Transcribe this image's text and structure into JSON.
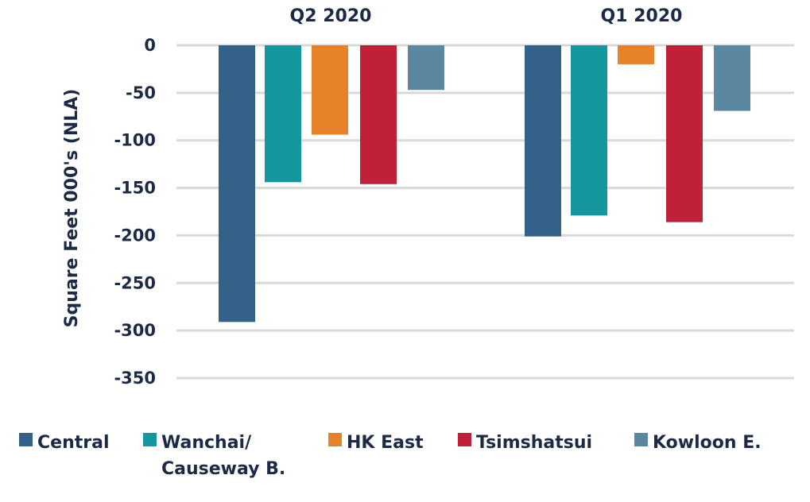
{
  "chart_data": {
    "type": "bar",
    "ylabel": "Square Feet 000's (NLA)",
    "ylim": [
      -350,
      0
    ],
    "yticks": [
      0,
      -50,
      -100,
      -150,
      -200,
      -250,
      -300,
      -350
    ],
    "grid": true,
    "legend_position": "bottom",
    "groups": [
      "Q2 2020",
      "Q1 2020"
    ],
    "series": [
      {
        "name": "Central",
        "legend_lines": [
          "Central"
        ],
        "color": "#336187",
        "values": [
          -291,
          -201
        ]
      },
      {
        "name": "Wanchai/ Causeway B.",
        "legend_lines": [
          "Wanchai/",
          "Causeway B."
        ],
        "color": "#1697a0",
        "values": [
          -144,
          -179
        ]
      },
      {
        "name": "HK East",
        "legend_lines": [
          "HK East"
        ],
        "color": "#e8822a",
        "values": [
          -94,
          -20
        ]
      },
      {
        "name": "Tsimshatsui",
        "legend_lines": [
          "Tsimshatsui"
        ],
        "color": "#c0213a",
        "values": [
          -146,
          -186
        ]
      },
      {
        "name": "Kowloon E.",
        "legend_lines": [
          "Kowloon E."
        ],
        "color": "#5b87a0",
        "values": [
          -47,
          -69
        ]
      }
    ]
  }
}
